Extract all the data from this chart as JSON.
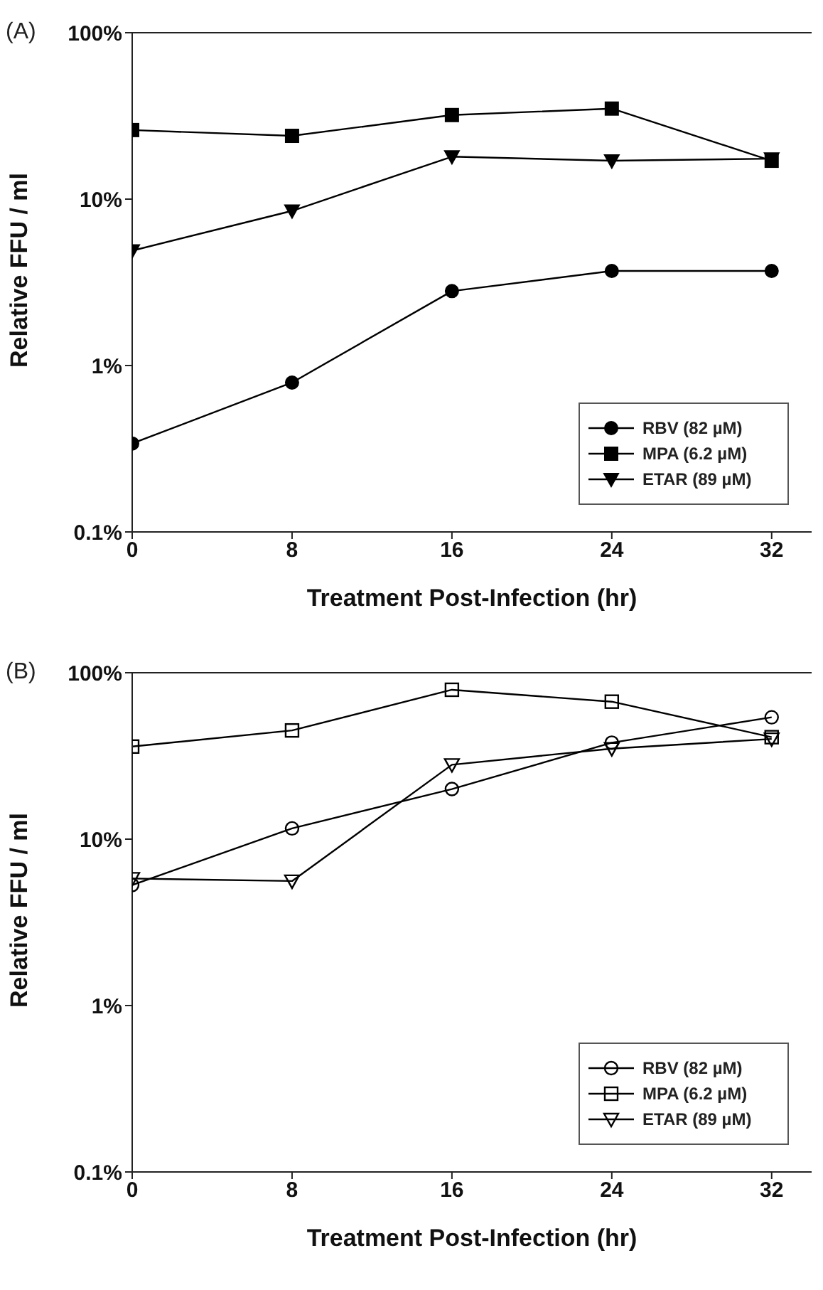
{
  "chart_data": [
    {
      "type": "line",
      "title": "(A)",
      "xlabel": "Treatment Post-Infection (hr)",
      "ylabel": "Relative FFU / ml",
      "x": [
        0,
        8,
        16,
        24,
        32
      ],
      "xlim": [
        0,
        34
      ],
      "xticks": [
        0,
        8,
        16,
        24,
        32
      ],
      "ylim": [
        0.1,
        100
      ],
      "yticks": [
        {
          "value": 0.1,
          "label": "0.1%"
        },
        {
          "value": 1,
          "label": "1%"
        },
        {
          "value": 10,
          "label": "10%"
        },
        {
          "value": 100,
          "label": "100%"
        }
      ],
      "log": "y",
      "grid": false,
      "legend": "bottom right",
      "series": [
        {
          "name": "RBV (82 µM)",
          "color": "#000000",
          "marker": "circle",
          "values": [
            0.34,
            0.79,
            2.8,
            3.7,
            3.7
          ]
        },
        {
          "name": "MPA (6.2 µM)",
          "color": "#000000",
          "marker": "square",
          "values": [
            26,
            24,
            32,
            35,
            17
          ]
        },
        {
          "name": "ETAR (89 µM)",
          "color": "#000000",
          "marker": "triangle",
          "values": [
            4.9,
            8.5,
            18,
            17,
            17.5
          ]
        }
      ]
    },
    {
      "type": "line",
      "title": "(B)",
      "xlabel": "Treatment Post-Infection (hr)",
      "ylabel": "Relative FFU / ml",
      "x": [
        0,
        8,
        16,
        24,
        32
      ],
      "xlim": [
        0,
        34
      ],
      "xticks": [
        0,
        8,
        16,
        24,
        32
      ],
      "ylim": [
        0.1,
        100
      ],
      "yticks": [
        {
          "value": 0.1,
          "label": "0.1%"
        },
        {
          "value": 1,
          "label": "1%"
        },
        {
          "value": 10,
          "label": "10%"
        },
        {
          "value": 100,
          "label": "100%"
        }
      ],
      "log": "y",
      "grid": false,
      "legend": "bottom right",
      "series": [
        {
          "name": "RBV (82 µM)",
          "color": "#000000",
          "marker": "circle",
          "values": [
            5.3,
            11.6,
            20,
            38,
            54
          ]
        },
        {
          "name": "MPA (6.2 µM)",
          "color": "#000000",
          "marker": "square",
          "values": [
            36,
            45,
            79,
            67,
            41
          ]
        },
        {
          "name": "ETAR (89 µM)",
          "color": "#000000",
          "marker": "triangle",
          "values": [
            5.8,
            5.6,
            28,
            35,
            40
          ]
        }
      ]
    }
  ]
}
